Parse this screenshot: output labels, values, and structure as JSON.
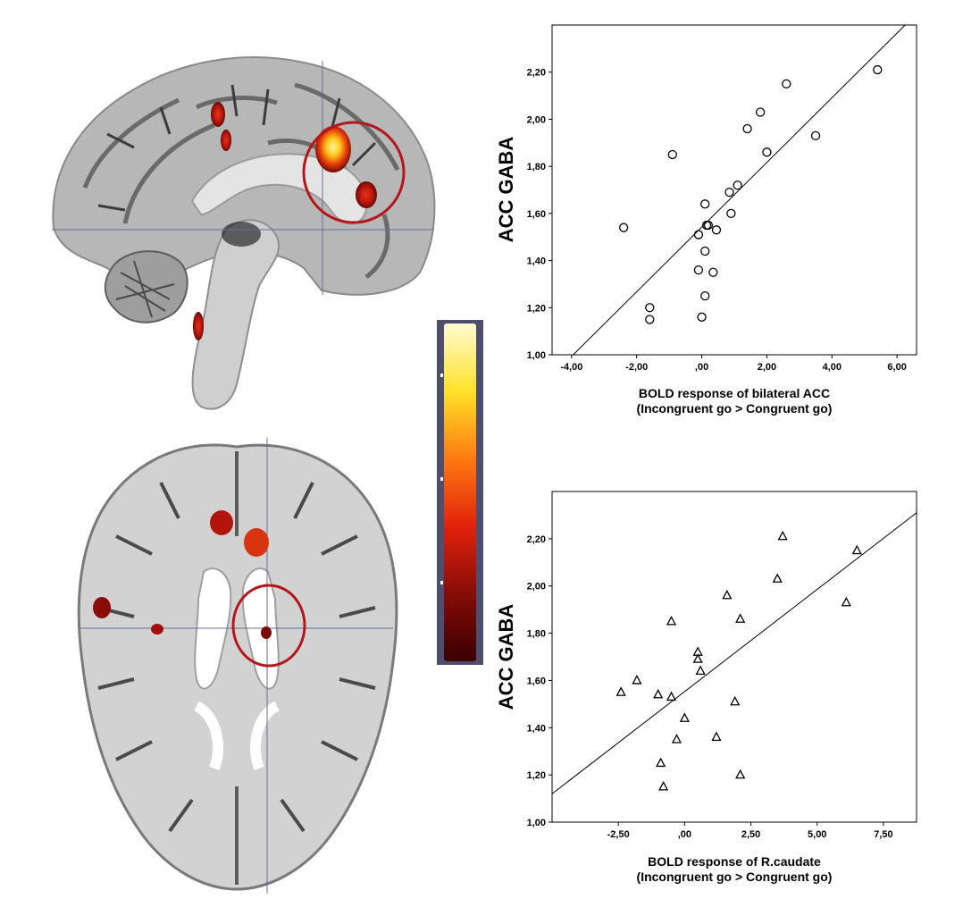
{
  "chart_data": [
    {
      "type": "scatter",
      "title": "",
      "marker": "circle",
      "xlabel": [
        "BOLD response of bilateral ACC",
        "(Incongruent go > Congruent go)"
      ],
      "ylabel": "ACC GABA",
      "xlim": [
        -4.6,
        6.6
      ],
      "ylim": [
        1.0,
        2.4
      ],
      "xticks": [
        -4,
        -2,
        0,
        2,
        4,
        6
      ],
      "xtick_labels": [
        "-4,00",
        "-2,00",
        ",00",
        "2,00",
        "4,00",
        "6,00"
      ],
      "yticks": [
        1.0,
        1.2,
        1.4,
        1.6,
        1.8,
        2.0,
        2.2
      ],
      "ytick_labels": [
        "1,00",
        "1,20",
        "1,40",
        "1,60",
        "1,80",
        "2,00",
        "2,20"
      ],
      "grid": false,
      "points": {
        "x": [
          -2.4,
          -1.6,
          -1.6,
          -0.9,
          -0.1,
          -0.1,
          0.0,
          0.1,
          0.1,
          0.15,
          0.1,
          0.2,
          0.35,
          0.45,
          0.85,
          0.9,
          1.1,
          1.4,
          1.8,
          2.0,
          2.6,
          3.5,
          5.4
        ],
        "y": [
          1.54,
          1.2,
          1.15,
          1.85,
          1.51,
          1.36,
          1.16,
          1.64,
          1.44,
          1.55,
          1.25,
          1.55,
          1.35,
          1.53,
          1.69,
          1.6,
          1.72,
          1.96,
          2.03,
          1.86,
          2.15,
          1.93,
          2.21
        ]
      },
      "fit_line": {
        "x": [
          -3.95,
          6.25
        ],
        "y": [
          1.0,
          2.4
        ]
      }
    },
    {
      "type": "scatter",
      "title": "",
      "marker": "triangle",
      "xlabel": [
        "BOLD response of R.caudate",
        "(Incongruent go > Congruent go)"
      ],
      "ylabel": "ACC GABA",
      "xlim": [
        -5.0,
        8.75
      ],
      "ylim": [
        1.0,
        2.4
      ],
      "xticks": [
        -2.5,
        0,
        2.5,
        5,
        7.5
      ],
      "xtick_labels": [
        "-2,50",
        ",00",
        "2,50",
        "5,00",
        "7,50"
      ],
      "yticks": [
        1.0,
        1.2,
        1.4,
        1.6,
        1.8,
        2.0,
        2.2
      ],
      "ytick_labels": [
        "1,00",
        "1,20",
        "1,40",
        "1,60",
        "1,80",
        "2,00",
        "2,20"
      ],
      "grid": false,
      "points": {
        "x": [
          -2.4,
          -1.8,
          -1.0,
          -0.9,
          -0.8,
          -0.5,
          -0.5,
          -0.3,
          0.0,
          0.5,
          0.5,
          0.6,
          1.2,
          1.6,
          1.9,
          2.1,
          2.1,
          3.5,
          3.7,
          6.1,
          6.5
        ],
        "y": [
          1.55,
          1.6,
          1.54,
          1.25,
          1.15,
          1.85,
          1.53,
          1.35,
          1.44,
          1.72,
          1.69,
          1.64,
          1.36,
          1.96,
          1.51,
          1.86,
          1.2,
          2.03,
          2.21,
          1.93,
          2.15
        ]
      },
      "fit_line": {
        "x": [
          -5.0,
          8.75
        ],
        "y": [
          1.12,
          2.31
        ]
      }
    }
  ],
  "colors": {
    "background": "#ffffff",
    "brain_gray": "#bdbdbd",
    "activation_hot": "#ffd21a",
    "activation_mid": "#e13a0c",
    "activation_dark": "#5a0606",
    "roi_circle": "#b3171c",
    "crosshair": "#6b6b9a"
  }
}
